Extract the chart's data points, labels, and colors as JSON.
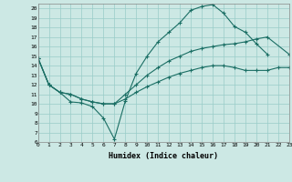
{
  "xlabel": "Humidex (Indice chaleur)",
  "bg_color": "#cce8e4",
  "grid_color": "#99ccc8",
  "line_color": "#1a6e64",
  "xlim": [
    0,
    23
  ],
  "ylim": [
    6,
    20.5
  ],
  "xticks": [
    0,
    1,
    2,
    3,
    4,
    5,
    6,
    7,
    8,
    9,
    10,
    11,
    12,
    13,
    14,
    15,
    16,
    17,
    18,
    19,
    20,
    21,
    22,
    23
  ],
  "yticks": [
    6,
    7,
    8,
    9,
    10,
    11,
    12,
    13,
    14,
    15,
    16,
    17,
    18,
    19,
    20
  ],
  "line1_x": [
    0,
    1,
    2,
    3,
    4,
    5,
    6,
    7,
    8,
    9,
    10,
    11,
    12,
    13,
    14,
    15,
    16,
    17,
    18,
    19,
    20,
    21
  ],
  "line1_y": [
    14.8,
    12.0,
    11.2,
    10.2,
    10.1,
    9.7,
    8.5,
    6.3,
    10.3,
    13.2,
    15.0,
    16.5,
    17.5,
    18.5,
    19.8,
    20.2,
    20.4,
    19.5,
    18.1,
    17.5,
    16.3,
    15.2
  ],
  "line2_x": [
    0,
    1,
    2,
    3,
    4,
    5,
    6,
    7,
    8,
    9,
    10,
    11,
    12,
    13,
    14,
    15,
    16,
    17,
    18,
    19,
    20,
    21,
    23
  ],
  "line2_y": [
    14.8,
    12.0,
    11.2,
    11.0,
    10.5,
    10.2,
    10.0,
    10.0,
    11.0,
    12.0,
    13.0,
    13.8,
    14.5,
    15.0,
    15.5,
    15.8,
    16.0,
    16.2,
    16.3,
    16.5,
    16.8,
    17.0,
    15.2
  ],
  "line3_x": [
    0,
    1,
    2,
    3,
    4,
    5,
    6,
    7,
    8,
    9,
    10,
    11,
    12,
    13,
    14,
    15,
    16,
    17,
    18,
    19,
    20,
    21,
    22,
    23
  ],
  "line3_y": [
    14.8,
    12.0,
    11.2,
    11.0,
    10.5,
    10.2,
    10.0,
    10.0,
    10.5,
    11.2,
    11.8,
    12.3,
    12.8,
    13.2,
    13.5,
    13.8,
    14.0,
    14.0,
    13.8,
    13.5,
    13.5,
    13.5,
    13.8,
    13.8
  ]
}
